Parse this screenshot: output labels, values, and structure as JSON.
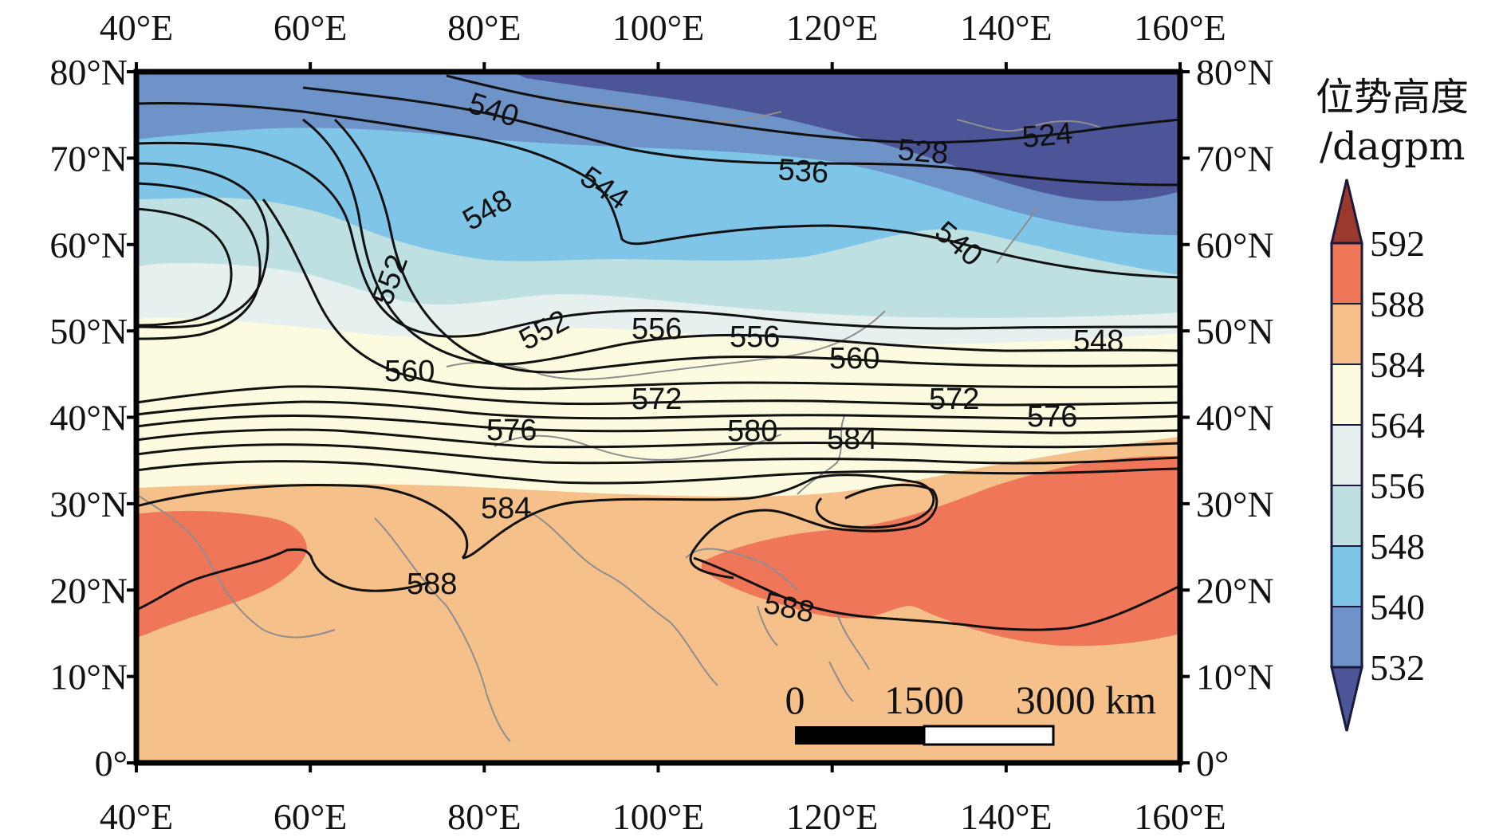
{
  "map": {
    "lon_ticks": [
      "40°E",
      "60°E",
      "80°E",
      "100°E",
      "120°E",
      "140°E",
      "160°E"
    ],
    "lat_ticks": [
      "0°",
      "10°N",
      "20°N",
      "30°N",
      "40°N",
      "50°N",
      "60°N",
      "70°N",
      "80°N"
    ],
    "contour_labels": {
      "c540a": "540",
      "c544": "544",
      "c548a": "548",
      "c552a": "552",
      "c552b": "552",
      "c556a": "556",
      "c556b": "556",
      "c560a": "560",
      "c560b": "560",
      "c572a": "572",
      "c572b": "572",
      "c576a": "576",
      "c576b": "576",
      "c580": "580",
      "c584a": "584",
      "c584b": "584",
      "c588a": "588",
      "c588b": "588",
      "c536": "536",
      "c528": "528",
      "c524": "524",
      "c540b": "540",
      "c548b": "548"
    },
    "scale_bar": {
      "zero": "0",
      "mid": "1500",
      "end": "3000 km"
    }
  },
  "legend": {
    "title_line1": "位势高度",
    "title_line2": "/dagpm",
    "levels": [
      "592",
      "588",
      "584",
      "564",
      "556",
      "548",
      "540",
      "532"
    ],
    "colors": {
      "above_592": "#9b3a2c",
      "c588_592": "#ef7659",
      "c584_588": "#f6c08a",
      "c564_584": "#fcfbe0",
      "c556_564": "#e6f1ef",
      "c548_556": "#bfe0e0",
      "c540_548": "#7fc5e8",
      "c532_540": "#6e93c8",
      "below_532": "#4b5597"
    }
  }
}
